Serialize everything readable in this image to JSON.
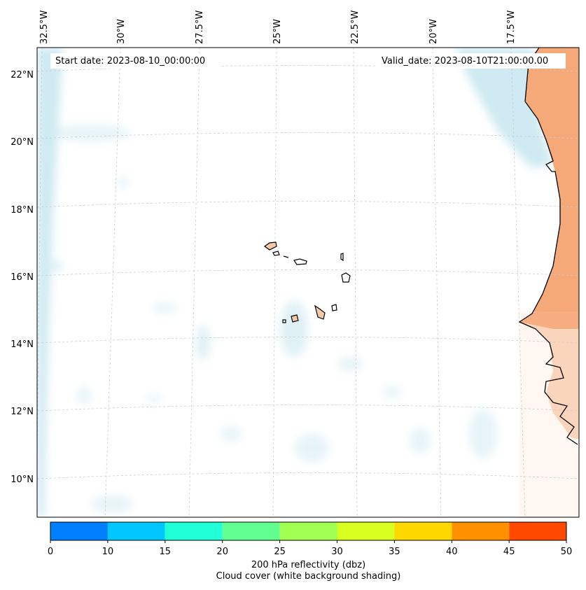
{
  "map": {
    "start_label": "Start date: 2023-08-10_00:00:00",
    "valid_label": "Valid_date: 2023-08-10T21:00:00.00",
    "lon_labels": [
      "32.5°W",
      "30°W",
      "27.5°W",
      "25°W",
      "22.5°W",
      "20°W",
      "17.5°W"
    ],
    "lat_labels": [
      "22°N",
      "20°N",
      "18°N",
      "16°N",
      "14°N",
      "12°N",
      "10°N"
    ]
  },
  "colorbar": {
    "ticks": [
      "0",
      "10",
      "15",
      "20",
      "25",
      "30",
      "35",
      "40",
      "45",
      "50"
    ],
    "colors": [
      "#0080ff",
      "#00c8ff",
      "#20ffd8",
      "#60ff90",
      "#a0ff50",
      "#d8ff20",
      "#ffd800",
      "#ff9000",
      "#ff4800"
    ],
    "title": "200 hPa reflectivity (dbz)",
    "subtitle": "Cloud cover (white background shading)"
  },
  "colors": {
    "cloud": "#bfe3ee",
    "land": "#f5a878",
    "coast": "#000000",
    "grid": "#cccccc"
  }
}
